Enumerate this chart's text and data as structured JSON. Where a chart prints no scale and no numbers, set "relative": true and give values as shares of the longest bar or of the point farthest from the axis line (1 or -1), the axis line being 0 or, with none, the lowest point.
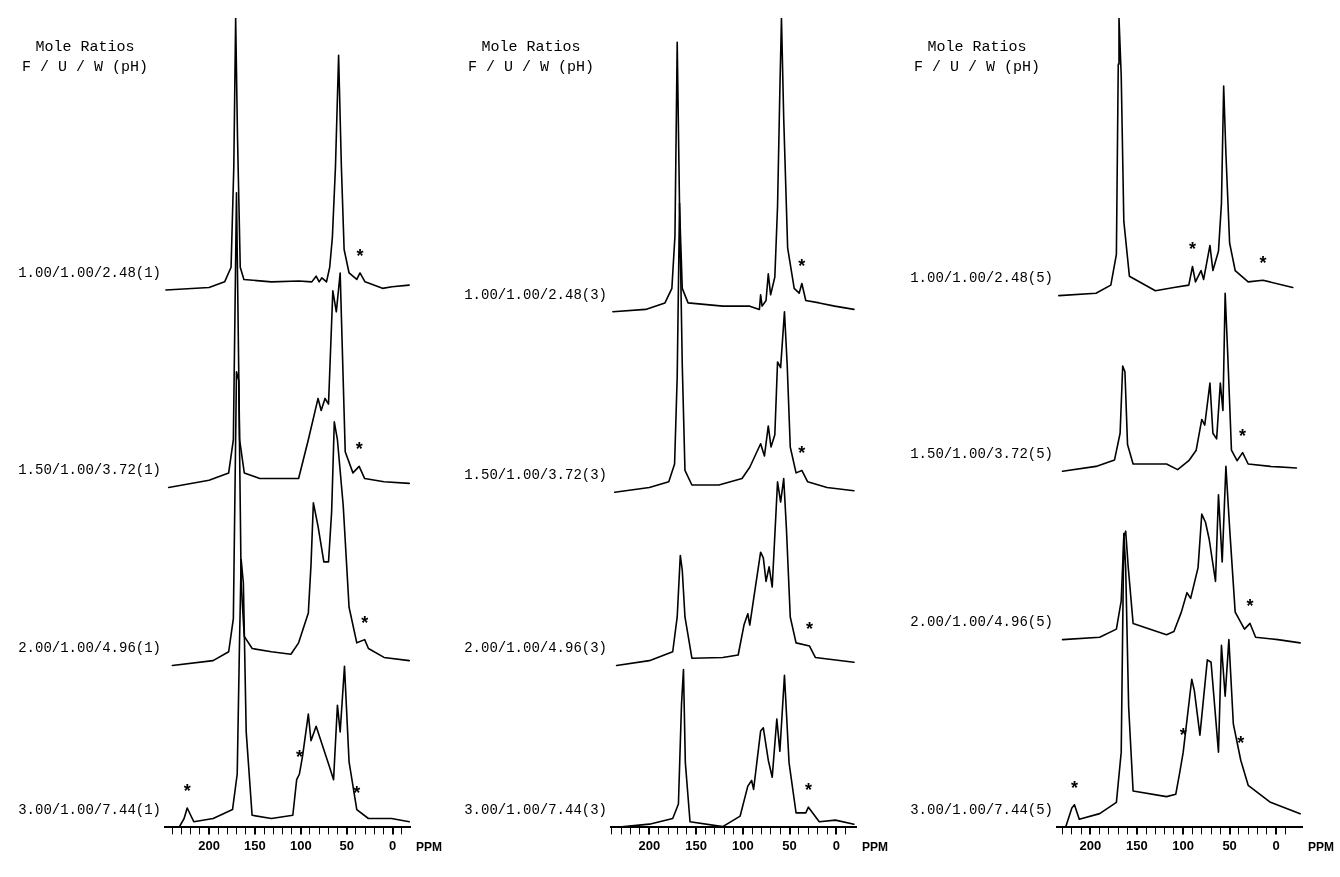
{
  "chart_data": [
    {
      "type": "line",
      "relative": true,
      "marker": "none",
      "legend_title": "Mole Ratios\nF / U / W (pH)",
      "xlabel": "PPM",
      "xlim": [
        248,
        -19
      ],
      "xticks": [
        {
          "value": 240,
          "label": null
        },
        {
          "value": 230,
          "label": null
        },
        {
          "value": 220,
          "label": null
        },
        {
          "value": 210,
          "label": null
        },
        200,
        {
          "value": 190,
          "label": null
        },
        {
          "value": 180,
          "label": null
        },
        {
          "value": 170,
          "label": null
        },
        {
          "value": 160,
          "label": null
        },
        150,
        {
          "value": 140,
          "label": null
        },
        {
          "value": 130,
          "label": null
        },
        {
          "value": 120,
          "label": null
        },
        {
          "value": 110,
          "label": null
        },
        100,
        {
          "value": 90,
          "label": null
        },
        {
          "value": 80,
          "label": null
        },
        {
          "value": 70,
          "label": null
        },
        {
          "value": 60,
          "label": null
        },
        50,
        {
          "value": 40,
          "label": null
        },
        {
          "value": 30,
          "label": null
        },
        {
          "value": 20,
          "label": null
        },
        {
          "value": 10,
          "label": null
        },
        0,
        {
          "value": -10,
          "label": null
        }
      ],
      "series": [
        {
          "name": "1.00/1.00/2.48(1)",
          "color": "#000000",
          "x": [
            247,
            200,
            183,
            176,
            173,
            171,
            169,
            166,
            162,
            132,
            102,
            88,
            83.3,
            80,
            77,
            72,
            68.5,
            65.6,
            62.2,
            58.8,
            55.8,
            52.8,
            47.4,
            39,
            35.5,
            30,
            11,
            0.5,
            -18
          ],
          "values": [
            0.664,
            0.667,
            0.674,
            0.692,
            0.817,
            1,
            0.854,
            0.692,
            0.677,
            0.674,
            0.675,
            0.674,
            0.681,
            0.674,
            0.679,
            0.674,
            0.692,
            0.729,
            0.817,
            0.954,
            0.817,
            0.714,
            0.685,
            0.677,
            0.685,
            0.674,
            0.666,
            0.668,
            0.67
          ]
        },
        {
          "name": "1.50/1.00/3.72(1)",
          "color": "#000000",
          "x": [
            244,
            200,
            178.6,
            173.5,
            170.1,
            166.7,
            161.6,
            144.7,
            110.8,
            102.4,
            91.8,
            81.2,
            77.8,
            73.6,
            69.8,
            65.1,
            61.3,
            57.1,
            51.6,
            43.2,
            36.4,
            30.4,
            9.3,
            -18.2
          ],
          "values": [
            0.42,
            0.429,
            0.438,
            0.479,
            0.784,
            0.479,
            0.438,
            0.431,
            0.431,
            0.431,
            0.479,
            0.53,
            0.515,
            0.53,
            0.523,
            0.663,
            0.637,
            0.685,
            0.464,
            0.438,
            0.446,
            0.431,
            0.427,
            0.425
          ]
        },
        {
          "name": "2.00/1.00/4.96(1)",
          "color": "#000000",
          "x": [
            240,
            195.6,
            178.6,
            173.5,
            170.1,
            167.6,
            165,
            161.6,
            153,
            132,
            110.8,
            102.4,
            91.8,
            88.9,
            86.3,
            81.2,
            74.9,
            69.8,
            66.4,
            63.5,
            60.1,
            53.8,
            47.4,
            39,
            30.4,
            26.3,
            9.3,
            -18.2
          ],
          "values": [
            0.2,
            0.206,
            0.217,
            0.258,
            0.563,
            0.552,
            0.302,
            0.236,
            0.221,
            0.217,
            0.214,
            0.228,
            0.265,
            0.324,
            0.401,
            0.372,
            0.328,
            0.328,
            0.39,
            0.501,
            0.479,
            0.398,
            0.272,
            0.228,
            0.232,
            0.221,
            0.21,
            0.206
          ]
        },
        {
          "name": "3.00/1.00/7.44(1)",
          "color": "#000000",
          "x": [
            232.7,
            227.2,
            223.8,
            216.6,
            195.5,
            174.4,
            169.3,
            166.8,
            165,
            162.6,
            159.5,
            153.1,
            132,
            108.7,
            104.5,
            101.5,
            98.1,
            91.8,
            88.9,
            83.3,
            68.5,
            64.3,
            60.1,
            57.1,
            52.4,
            47.4,
            39,
            26.3,
            1.1,
            -18.2
          ],
          "values": [
            0,
            0.011,
            0.024,
            0.007,
            0.011,
            0.022,
            0.066,
            0.228,
            0.331,
            0.302,
            0.118,
            0.015,
            0.011,
            0.015,
            0.059,
            0.066,
            0.088,
            0.14,
            0.107,
            0.125,
            0.074,
            0.059,
            0.151,
            0.118,
            0.199,
            0.081,
            0.022,
            0.011,
            0.011,
            0.007
          ]
        }
      ],
      "annotations": [
        {
          "text": "*",
          "x": 35.5,
          "y": 0.685
        },
        {
          "text": "*",
          "x": 36.4,
          "y": 0.446
        },
        {
          "text": "*",
          "x": 30.4,
          "y": 0.232
        },
        {
          "text": "*",
          "x": 223.8,
          "y": 0.024
        },
        {
          "text": "*",
          "x": 101.5,
          "y": 0.066
        },
        {
          "text": "*",
          "x": 39,
          "y": 0.022
        }
      ]
    },
    {
      "type": "line",
      "relative": true,
      "marker": "none",
      "legend_title": "Mole Ratios\nF / U / W (pH)",
      "xlabel": "PPM",
      "xlim": [
        241,
        -21
      ],
      "xticks": [
        {
          "value": 240,
          "label": null
        },
        {
          "value": 230,
          "label": null
        },
        {
          "value": 220,
          "label": null
        },
        {
          "value": 210,
          "label": null
        },
        200,
        {
          "value": 190,
          "label": null
        },
        {
          "value": 180,
          "label": null
        },
        {
          "value": 170,
          "label": null
        },
        {
          "value": 160,
          "label": null
        },
        150,
        {
          "value": 140,
          "label": null
        },
        {
          "value": 130,
          "label": null
        },
        {
          "value": 120,
          "label": null
        },
        {
          "value": 110,
          "label": null
        },
        100,
        {
          "value": 90,
          "label": null
        },
        {
          "value": 80,
          "label": null
        },
        {
          "value": 70,
          "label": null
        },
        {
          "value": 60,
          "label": null
        },
        50,
        {
          "value": 40,
          "label": null
        },
        {
          "value": 30,
          "label": null
        },
        {
          "value": 20,
          "label": null
        },
        {
          "value": 10,
          "label": null
        },
        0,
        {
          "value": -10,
          "label": null
        }
      ],
      "series": [
        {
          "name": "1.00/1.00/2.48(3)",
          "color": "#000000",
          "x": [
            239,
            204,
            183.3,
            175.9,
            172.6,
            170.2,
            167.7,
            164.8,
            158.6,
            121.5,
            92.6,
            82.3,
            81,
            79.4,
            75.2,
            72.8,
            70.3,
            65.8,
            62.9,
            60.4,
            58.7,
            56.3,
            52.1,
            45.1,
            39.8,
            36.9,
            32.7,
            18.3,
            1.8,
            -18.8
          ],
          "values": [
            0.637,
            0.64,
            0.648,
            0.666,
            0.731,
            0.97,
            0.767,
            0.666,
            0.648,
            0.644,
            0.644,
            0.64,
            0.658,
            0.644,
            0.651,
            0.684,
            0.658,
            0.68,
            0.767,
            0.912,
            1,
            0.876,
            0.716,
            0.666,
            0.66,
            0.672,
            0.651,
            0.648,
            0.644,
            0.64
          ]
        },
        {
          "name": "1.50/1.00/3.72(3)",
          "color": "#000000",
          "x": [
            237,
            200,
            179.2,
            173,
            170.2,
            167.7,
            164.8,
            161.9,
            154.5,
            125.6,
            100.9,
            92.6,
            81,
            76.9,
            72.8,
            69.9,
            65.8,
            62.9,
            59.6,
            55.5,
            52.6,
            49.3,
            43.1,
            36.9,
            30.7,
            10,
            -18.8
          ],
          "values": [
            0.414,
            0.42,
            0.427,
            0.449,
            0.557,
            0.771,
            0.572,
            0.441,
            0.423,
            0.423,
            0.431,
            0.445,
            0.474,
            0.459,
            0.496,
            0.47,
            0.485,
            0.575,
            0.568,
            0.637,
            0.572,
            0.47,
            0.438,
            0.441,
            0.427,
            0.42,
            0.416
          ]
        },
        {
          "name": "2.00/1.00/4.96(3)",
          "color": "#000000",
          "x": [
            235,
            200,
            175,
            170.2,
            166.9,
            164.8,
            161.9,
            154.5,
            121.5,
            105,
            98.8,
            94.7,
            92.6,
            88.5,
            81,
            78.1,
            75.2,
            71.9,
            68.6,
            62.9,
            59.6,
            56.3,
            53.4,
            49.3,
            43.1,
            28.7,
            22.5,
            -18.8
          ],
          "values": [
            0.2,
            0.206,
            0.217,
            0.26,
            0.336,
            0.318,
            0.26,
            0.209,
            0.21,
            0.213,
            0.25,
            0.264,
            0.25,
            0.282,
            0.34,
            0.333,
            0.304,
            0.322,
            0.297,
            0.427,
            0.402,
            0.431,
            0.369,
            0.26,
            0.228,
            0.224,
            0.21,
            0.204
          ]
        },
        {
          "name": "3.00/1.00/7.44(3)",
          "color": "#000000",
          "x": [
            235,
            200,
            175,
            168.9,
            165.6,
            163.5,
            161.5,
            156.5,
            121.5,
            102.9,
            94.7,
            90.6,
            88.5,
            81,
            78.1,
            72.8,
            68.6,
            63.7,
            60.4,
            55.5,
            50.6,
            43.1,
            32.7,
            29.9,
            18.3,
            0.9,
            -18.8
          ],
          "values": [
            0,
            0.004,
            0.011,
            0.029,
            0.152,
            0.195,
            0.08,
            0.007,
            0.001,
            0.014,
            0.051,
            0.058,
            0.047,
            0.119,
            0.123,
            0.083,
            0.062,
            0.134,
            0.094,
            0.188,
            0.08,
            0.018,
            0.018,
            0.025,
            0.007,
            0.009,
            0.004
          ]
        }
      ],
      "annotations": [
        {
          "text": "*",
          "x": 36.9,
          "y": 0.672
        },
        {
          "text": "*",
          "x": 36.9,
          "y": 0.441
        },
        {
          "text": "*",
          "x": 28.7,
          "y": 0.224
        },
        {
          "text": "*",
          "x": 29.9,
          "y": 0.025
        }
      ]
    },
    {
      "type": "line",
      "relative": true,
      "marker": "none",
      "legend_title": "Mole Ratios\nF / U / W (pH)",
      "xlabel": "PPM",
      "xlim": [
        236,
        -28
      ],
      "xticks": [
        {
          "value": 230,
          "label": null
        },
        {
          "value": 220,
          "label": null
        },
        {
          "value": 210,
          "label": null
        },
        200,
        {
          "value": 190,
          "label": null
        },
        {
          "value": 180,
          "label": null
        },
        {
          "value": 170,
          "label": null
        },
        {
          "value": 160,
          "label": null
        },
        150,
        {
          "value": 140,
          "label": null
        },
        {
          "value": 130,
          "label": null
        },
        {
          "value": 120,
          "label": null
        },
        {
          "value": 110,
          "label": null
        },
        100,
        {
          "value": 90,
          "label": null
        },
        {
          "value": 80,
          "label": null
        },
        {
          "value": 70,
          "label": null
        },
        {
          "value": 60,
          "label": null
        },
        50,
        {
          "value": 40,
          "label": null
        },
        {
          "value": 30,
          "label": null
        },
        {
          "value": 20,
          "label": null
        },
        {
          "value": 10,
          "label": null
        },
        0,
        {
          "value": -10,
          "label": null
        }
      ],
      "series": [
        {
          "name": "1.00/1.00/2.48(5)",
          "color": "#000000",
          "x": [
            234,
            194,
            178,
            172,
            170,
            169.2,
            166.8,
            164,
            158,
            130,
            110,
            94,
            90,
            86.8,
            80.8,
            78,
            71.2,
            68,
            62,
            58.8,
            56.4,
            54,
            50,
            44,
            30,
            14,
            -18
          ],
          "values": [
            0.657,
            0.66,
            0.67,
            0.708,
            0.943,
            1,
            0.929,
            0.749,
            0.681,
            0.663,
            0.667,
            0.67,
            0.693,
            0.674,
            0.688,
            0.677,
            0.719,
            0.688,
            0.712,
            0.771,
            0.916,
            0.833,
            0.722,
            0.688,
            0.674,
            0.676,
            0.667
          ]
        },
        {
          "name": "1.50/1.00/3.72(5)",
          "color": "#000000",
          "x": [
            230,
            194,
            174,
            168,
            165.2,
            162.8,
            160,
            154,
            118,
            106,
            94,
            86,
            80,
            76.8,
            71.2,
            68,
            64,
            60,
            57.2,
            54.8,
            52,
            48,
            42,
            36,
            30,
            6,
            -22
          ],
          "values": [
            0.44,
            0.446,
            0.454,
            0.487,
            0.57,
            0.563,
            0.473,
            0.449,
            0.449,
            0.442,
            0.453,
            0.466,
            0.504,
            0.497,
            0.549,
            0.487,
            0.48,
            0.549,
            0.515,
            0.66,
            0.584,
            0.466,
            0.453,
            0.463,
            0.449,
            0.446,
            0.444
          ]
        },
        {
          "name": "2.00/1.00/4.96(5)",
          "color": "#000000",
          "x": [
            230,
            190,
            172,
            166.8,
            164,
            162,
            159.2,
            154,
            118,
            110,
            102,
            96,
            92,
            84,
            80,
            76,
            72,
            65.2,
            62,
            58,
            54,
            50,
            44,
            34,
            28,
            22,
            -2,
            -26
          ],
          "values": [
            0.232,
            0.235,
            0.245,
            0.28,
            0.359,
            0.366,
            0.321,
            0.252,
            0.238,
            0.242,
            0.266,
            0.29,
            0.283,
            0.321,
            0.387,
            0.377,
            0.356,
            0.304,
            0.411,
            0.328,
            0.446,
            0.37,
            0.266,
            0.245,
            0.252,
            0.235,
            0.232,
            0.228
          ]
        },
        {
          "name": "3.00/1.00/7.44(5)",
          "color": "#000000",
          "x": [
            226.8,
            220,
            217.2,
            212,
            190,
            172,
            166.8,
            164,
            162,
            158.8,
            154,
            118,
            108,
            104,
            100,
            90.8,
            88,
            82,
            74,
            70,
            62,
            58.8,
            54.8,
            50.8,
            46,
            38,
            30,
            6,
            -26
          ],
          "values": [
            0,
            0.024,
            0.028,
            0.01,
            0.017,
            0.031,
            0.093,
            0.363,
            0.321,
            0.149,
            0.045,
            0.038,
            0.041,
            0.066,
            0.093,
            0.183,
            0.169,
            0.114,
            0.207,
            0.204,
            0.093,
            0.225,
            0.162,
            0.232,
            0.128,
            0.083,
            0.052,
            0.031,
            0.017
          ]
        }
      ],
      "annotations": [
        {
          "text": "*",
          "x": 90,
          "y": 0.693
        },
        {
          "text": "*",
          "x": 14,
          "y": 0.676
        },
        {
          "text": "*",
          "x": 36,
          "y": 0.463
        },
        {
          "text": "*",
          "x": 28,
          "y": 0.252
        },
        {
          "text": "*",
          "x": 217.2,
          "y": 0.028
        },
        {
          "text": "*",
          "x": 100,
          "y": 0.093
        },
        {
          "text": "*",
          "x": 38,
          "y": 0.083
        }
      ]
    }
  ]
}
